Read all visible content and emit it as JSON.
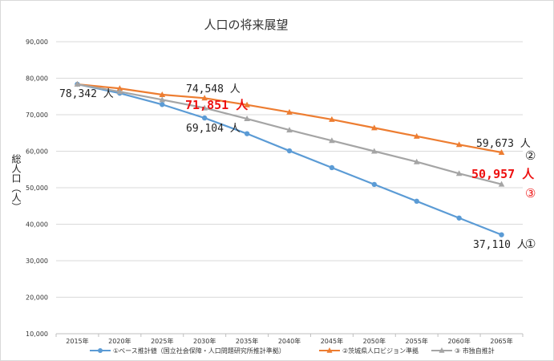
{
  "chart_data": {
    "type": "line",
    "title": "人口の将来展望",
    "ylabel": "総人口（人）",
    "xlabel": "",
    "categories": [
      "2015年",
      "2020年",
      "2025年",
      "2030年",
      "2035年",
      "2040年",
      "2045年",
      "2050年",
      "2055年",
      "2060年",
      "2065年"
    ],
    "ylim": [
      10000,
      90000
    ],
    "yticks": [
      "10,000",
      "20,000",
      "30,000",
      "40,000",
      "50,000",
      "60,000",
      "70,000",
      "80,000",
      "90,000"
    ],
    "grid": true,
    "legend_position": "bottom",
    "series": [
      {
        "name": "①ベース推計値（国立社会保障・人口問題研究所推計準拠）",
        "color": "#5b9bd5",
        "marker": "circle",
        "values": [
          78342,
          75900,
          72800,
          69104,
          64800,
          60100,
          55500,
          50900,
          46300,
          41700,
          37110
        ]
      },
      {
        "name": "②茨城県人口ビジョン準拠",
        "color": "#ed7d31",
        "marker": "triangle",
        "values": [
          78342,
          77200,
          75500,
          74548,
          72700,
          70700,
          68700,
          66400,
          64100,
          61800,
          59673
        ]
      },
      {
        "name": "③ 市独自推計",
        "color": "#a5a5a5",
        "marker": "triangle",
        "values": [
          78342,
          76300,
          74100,
          71851,
          68900,
          65800,
          62900,
          60000,
          57100,
          53900,
          50957
        ]
      }
    ],
    "annotations": [
      {
        "text": "78,342 人",
        "style": "normal"
      },
      {
        "text": "74,548 人",
        "style": "normal"
      },
      {
        "text": "71,851 人",
        "style": "red"
      },
      {
        "text": "69,104 人",
        "style": "normal"
      },
      {
        "text": "59,673 人",
        "style": "normal"
      },
      {
        "text": "②",
        "style": "circle"
      },
      {
        "text": "50,957 人",
        "style": "red"
      },
      {
        "text": "③",
        "style": "circle-red"
      },
      {
        "text": "37,110 人",
        "style": "normal"
      },
      {
        "text": "①",
        "style": "circle"
      }
    ]
  }
}
